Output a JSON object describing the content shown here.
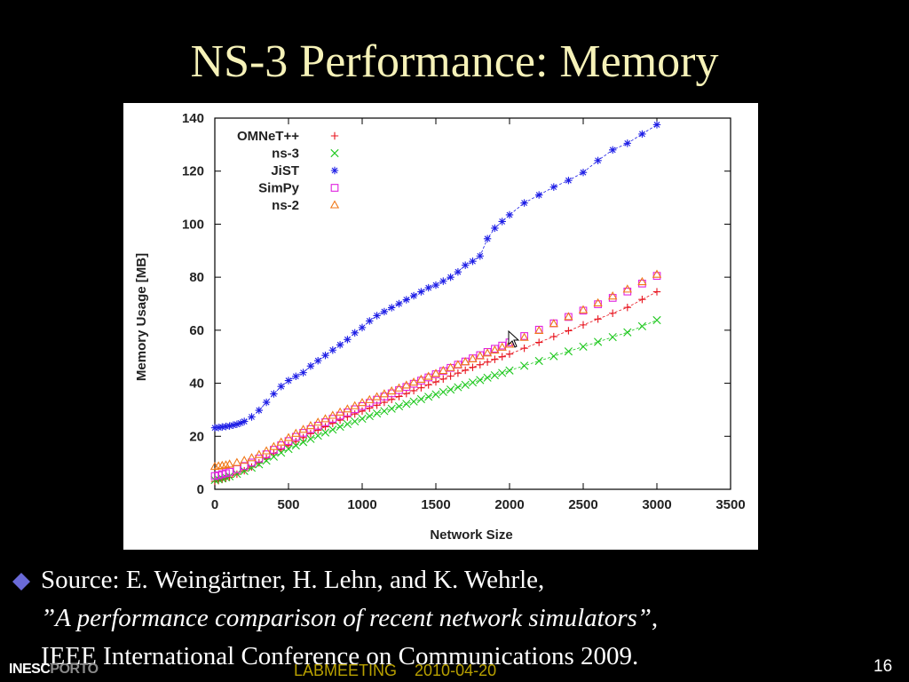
{
  "slide": {
    "title": "NS-3 Performance: Memory",
    "page_number": "16",
    "footer_center": "LABMEETING    2010-04-20",
    "footer_logo_part1": "INESC",
    "footer_logo_part2": "PORTO"
  },
  "source": {
    "line1": "Source: E. Weingärtner, H. Lehn, and K. Wehrle,",
    "line2_italic": "”A performance comparison of recent network simulators”",
    "line2_tail": ",",
    "line3": "IEEE International Conference on Communications 2009."
  },
  "colors": {
    "title": "#f6f2b8",
    "bullet": "#6a6ad8",
    "footer_center": "#b8a000",
    "omnet": "#e8141e",
    "ns3": "#1ec81e",
    "jist": "#1e1ee6",
    "simpy": "#e020e0",
    "ns2": "#f07818"
  },
  "chart_data": {
    "type": "scatter",
    "xlabel": "Network Size",
    "ylabel": "Memory Usage [MB]",
    "xlim": [
      0,
      3500
    ],
    "ylim": [
      0,
      140
    ],
    "xticks": [
      0,
      500,
      1000,
      1500,
      2000,
      2500,
      3000,
      3500
    ],
    "yticks": [
      0,
      20,
      40,
      60,
      80,
      100,
      120,
      140
    ],
    "legend_position": "top-left",
    "grid": false,
    "series": [
      {
        "name": "OMNeT++",
        "marker": "plus",
        "color": "#e8141e",
        "dashed": true,
        "x": [
          0,
          25,
          50,
          75,
          100,
          150,
          200,
          250,
          300,
          350,
          400,
          450,
          500,
          550,
          600,
          650,
          700,
          750,
          800,
          850,
          900,
          950,
          1000,
          1050,
          1100,
          1150,
          1200,
          1250,
          1300,
          1350,
          1400,
          1450,
          1500,
          1550,
          1600,
          1650,
          1700,
          1750,
          1800,
          1850,
          1900,
          1950,
          2000,
          2100,
          2200,
          2300,
          2400,
          2500,
          2600,
          2700,
          2800,
          2900,
          3000
        ],
        "y": [
          3,
          3.3,
          3.7,
          4.1,
          4.6,
          5.7,
          7,
          8.4,
          10,
          11.7,
          13.5,
          15,
          16.5,
          18,
          19.5,
          21,
          22.3,
          23.6,
          24.9,
          26.1,
          27.3,
          28.4,
          29.5,
          30.6,
          31.7,
          32.8,
          33.9,
          35,
          36.1,
          37.2,
          38.3,
          39.4,
          40.5,
          41.6,
          42.7,
          43.8,
          44.9,
          46,
          47,
          48,
          49,
          50,
          51,
          53.2,
          55.4,
          57.6,
          59.8,
          62,
          64.2,
          66.4,
          68.6,
          71.6,
          74.5
        ]
      },
      {
        "name": "ns-3",
        "marker": "x",
        "color": "#1ec81e",
        "dashed": true,
        "x": [
          0,
          25,
          50,
          75,
          100,
          150,
          200,
          250,
          300,
          350,
          400,
          450,
          500,
          550,
          600,
          650,
          700,
          750,
          800,
          850,
          900,
          950,
          1000,
          1050,
          1100,
          1150,
          1200,
          1250,
          1300,
          1350,
          1400,
          1450,
          1500,
          1550,
          1600,
          1650,
          1700,
          1750,
          1800,
          1850,
          1900,
          1950,
          2000,
          2100,
          2200,
          2300,
          2400,
          2500,
          2600,
          2700,
          2800,
          2900,
          3000
        ],
        "y": [
          3.5,
          3.8,
          4.1,
          4.5,
          4.9,
          5.8,
          6.9,
          8.1,
          9.4,
          10.8,
          12.3,
          13.8,
          15.2,
          16.5,
          17.8,
          19,
          20.2,
          21.4,
          22.5,
          23.6,
          24.6,
          25.6,
          26.6,
          27.6,
          28.6,
          29.5,
          30.4,
          31.3,
          32.2,
          33.1,
          34,
          34.9,
          35.8,
          36.7,
          37.6,
          38.5,
          39.4,
          40.3,
          41.2,
          42.1,
          43,
          43.9,
          44.8,
          46.6,
          48.4,
          50.2,
          52,
          53.8,
          55.6,
          57.4,
          59.2,
          61.5,
          63.8
        ]
      },
      {
        "name": "JiST",
        "marker": "star",
        "color": "#1e1ee6",
        "dashed": true,
        "x": [
          0,
          25,
          50,
          75,
          100,
          125,
          150,
          175,
          200,
          250,
          300,
          350,
          400,
          450,
          500,
          550,
          600,
          650,
          700,
          750,
          800,
          850,
          900,
          950,
          1000,
          1050,
          1100,
          1150,
          1200,
          1250,
          1300,
          1350,
          1400,
          1450,
          1500,
          1550,
          1600,
          1650,
          1700,
          1750,
          1800,
          1850,
          1900,
          1950,
          2000,
          2100,
          2200,
          2300,
          2400,
          2500,
          2600,
          2700,
          2800,
          2900,
          3000
        ],
        "y": [
          23.2,
          23.3,
          23.5,
          23.7,
          23.9,
          24.2,
          24.5,
          25,
          25.6,
          27.3,
          29.8,
          32.8,
          36,
          38.8,
          41,
          42.6,
          44,
          46.5,
          48.5,
          50.5,
          52.5,
          54.5,
          56.5,
          59,
          61,
          63.5,
          65.5,
          67,
          68.5,
          70,
          71.5,
          73,
          74.5,
          76,
          77,
          78.5,
          80,
          82,
          84.5,
          86,
          88,
          94.5,
          98.5,
          101,
          103.5,
          108,
          111,
          114,
          116.5,
          119.5,
          124,
          128,
          130.5,
          134,
          137.5
        ]
      },
      {
        "name": "SimPy",
        "marker": "square",
        "color": "#e020e0",
        "dashed": false,
        "x": [
          0,
          25,
          50,
          75,
          100,
          150,
          200,
          250,
          300,
          350,
          400,
          450,
          500,
          550,
          600,
          650,
          700,
          750,
          800,
          850,
          900,
          950,
          1000,
          1050,
          1100,
          1150,
          1200,
          1250,
          1300,
          1350,
          1400,
          1450,
          1500,
          1550,
          1600,
          1650,
          1700,
          1750,
          1800,
          1850,
          1900,
          1950,
          2000,
          2100,
          2200,
          2300,
          2400,
          2500,
          2600,
          2700,
          2800,
          2900,
          3000
        ],
        "y": [
          5,
          5.3,
          5.7,
          6.1,
          6.6,
          7.6,
          8.8,
          10.1,
          11.6,
          13.2,
          14.9,
          16.6,
          18.2,
          19.8,
          21.3,
          22.7,
          24,
          25.3,
          26.6,
          27.8,
          29,
          30.2,
          31.4,
          32.6,
          33.8,
          35,
          36.2,
          37.4,
          38.6,
          39.8,
          41,
          42.2,
          43.4,
          44.6,
          45.8,
          47,
          48.2,
          49.4,
          50.6,
          51.8,
          53,
          54.2,
          55.4,
          57.8,
          60.2,
          62.6,
          65,
          67.4,
          69.8,
          72.2,
          74.6,
          77.6,
          80.5
        ]
      },
      {
        "name": "ns-2",
        "marker": "triangle",
        "color": "#f07818",
        "dashed": false,
        "x": [
          0,
          25,
          50,
          75,
          100,
          150,
          200,
          250,
          300,
          350,
          400,
          450,
          500,
          550,
          600,
          650,
          700,
          750,
          800,
          850,
          900,
          950,
          1000,
          1050,
          1100,
          1150,
          1200,
          1250,
          1300,
          1350,
          1400,
          1450,
          1500,
          1550,
          1600,
          1650,
          1700,
          1750,
          1800,
          1850,
          1900,
          1950,
          2000,
          2100,
          2200,
          2300,
          2400,
          2500,
          2600,
          2700,
          2800,
          2900,
          3000
        ],
        "y": [
          8.5,
          8.7,
          8.9,
          9.1,
          9.4,
          10,
          10.8,
          11.8,
          13,
          14.4,
          16,
          17.7,
          19.4,
          21,
          22.5,
          23.9,
          25.2,
          26.5,
          27.8,
          29,
          30.2,
          31.4,
          32.6,
          33.7,
          34.8,
          35.9,
          37,
          38.1,
          39.2,
          40.3,
          41.4,
          42.5,
          43.6,
          44.7,
          45.8,
          46.9,
          48,
          49.1,
          50.2,
          51.3,
          52.4,
          53.5,
          54.6,
          57.2,
          59.8,
          62.4,
          65,
          67.6,
          70.2,
          72.8,
          75.4,
          78.2,
          81
        ]
      }
    ]
  }
}
